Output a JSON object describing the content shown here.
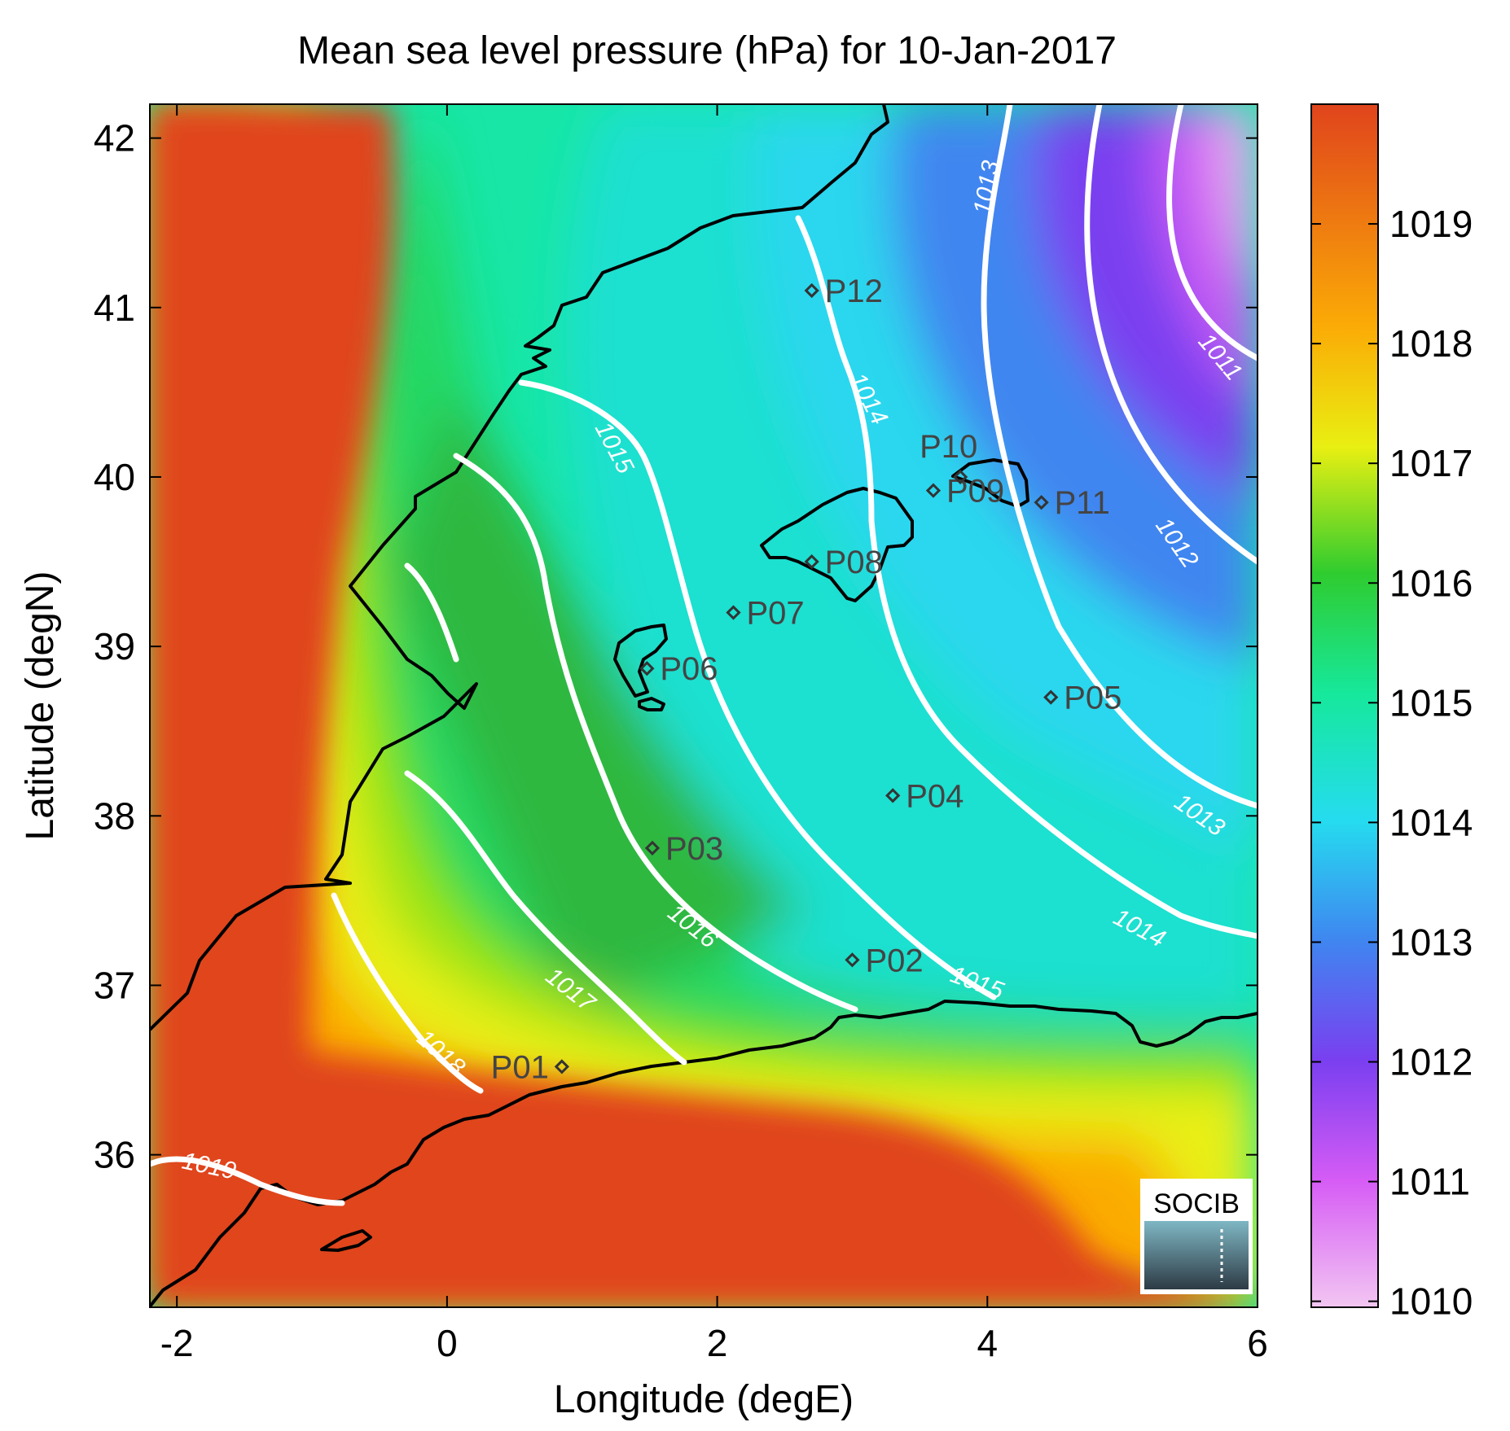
{
  "title": "Mean sea level pressure (hPa) for 10-Jan-2017",
  "x_axis": {
    "label": "Longitude (degE)",
    "range": [
      -2.2,
      6.0
    ],
    "ticks": [
      -2,
      0,
      2,
      4,
      6
    ],
    "tick_labels": [
      "-2",
      "0",
      "2",
      "4",
      "6"
    ]
  },
  "y_axis": {
    "label": "Latitude (degN)",
    "range": [
      35.1,
      42.2
    ],
    "ticks": [
      36,
      37,
      38,
      39,
      40,
      41,
      42
    ],
    "tick_labels": [
      "36",
      "37",
      "38",
      "39",
      "40",
      "41",
      "42"
    ]
  },
  "colorbar": {
    "range": [
      1009.95,
      1020.0
    ],
    "ticks": [
      1010,
      1011,
      1012,
      1013,
      1014,
      1015,
      1016,
      1017,
      1018,
      1019
    ],
    "tick_labels": [
      "1010",
      "1011",
      "1012",
      "1013",
      "1014",
      "1015",
      "1016",
      "1017",
      "1018",
      "1019"
    ],
    "colormap": [
      "#f2c6f2",
      "#d65cf5",
      "#7a3ff0",
      "#3f86f0",
      "#25dcef",
      "#16e89c",
      "#2fcc2f",
      "#e9ef12",
      "#fbab06",
      "#e0441c"
    ]
  },
  "contours": [
    {
      "label": "1011",
      "color": "#ffffff"
    },
    {
      "label": "1012",
      "color": "#ffffff"
    },
    {
      "label": "1013",
      "color": "#ffffff"
    },
    {
      "label": "1014",
      "color": "#ffffff"
    },
    {
      "label": "1015",
      "color": "#ffffff"
    },
    {
      "label": "1016",
      "color": "#ffffff"
    },
    {
      "label": "1017",
      "color": "#ffffff"
    },
    {
      "label": "1018",
      "color": "#ffffff"
    },
    {
      "label": "1019",
      "color": "#ffffff"
    }
  ],
  "stations": [
    {
      "id": "P01",
      "lon": 0.85,
      "lat": 36.52
    },
    {
      "id": "P02",
      "lon": 3.0,
      "lat": 37.15
    },
    {
      "id": "P03",
      "lon": 1.52,
      "lat": 37.81
    },
    {
      "id": "P04",
      "lon": 3.3,
      "lat": 38.12
    },
    {
      "id": "P05",
      "lon": 4.47,
      "lat": 38.7
    },
    {
      "id": "P06",
      "lon": 1.48,
      "lat": 38.87
    },
    {
      "id": "P07",
      "lon": 2.12,
      "lat": 39.2
    },
    {
      "id": "P08",
      "lon": 2.7,
      "lat": 39.5
    },
    {
      "id": "P09",
      "lon": 3.6,
      "lat": 39.92
    },
    {
      "id": "P10",
      "lon": 3.8,
      "lat": 40.0
    },
    {
      "id": "P11",
      "lon": 4.4,
      "lat": 39.85
    },
    {
      "id": "P12",
      "lon": 2.7,
      "lat": 41.1
    }
  ],
  "logo": {
    "text": "SOCIB"
  }
}
